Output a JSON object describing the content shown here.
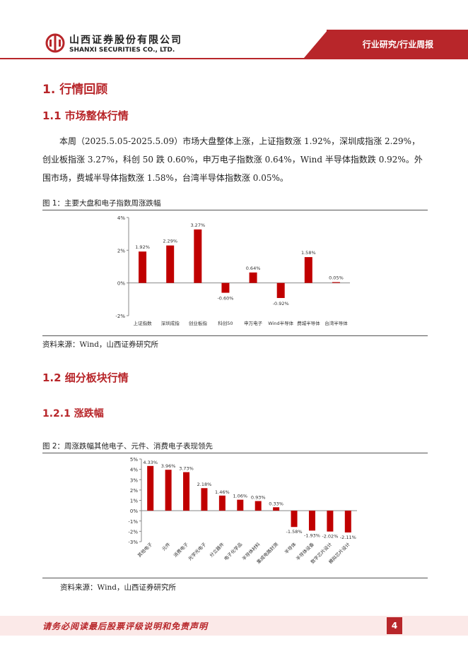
{
  "header": {
    "company_cn": "山西证券股份有限公司",
    "company_en": "SHANXI SECURITIES CO., LTD.",
    "section": "行业研究/行业周报",
    "brand_color": "#b8262a"
  },
  "section1": {
    "title": "1.  行情回顾"
  },
  "section1_1": {
    "title": "1.1  市场整体行情",
    "paragraph": "本周（2025.5.05-2025.5.09）市场大盘整体上涨，上证指数涨 1.92%，深圳成指涨 2.29%，创业板指涨 3.27%，科创 50 跌 0.60%，申万电子指数涨 0.64%，Wind 半导体指数跌 0.92%。外围市场，费城半导体指数涨 1.58%，台湾半导体指数涨 0.05%。"
  },
  "figure1": {
    "caption": "图 1：主要大盘和电子指数周涨跌幅",
    "source": "资料来源：Wind，山西证券研究所"
  },
  "section1_2": {
    "title": "1.2  细分板块行情"
  },
  "section1_2_1": {
    "title": "1.2.1  涨跌幅"
  },
  "figure2": {
    "caption": "图 2：周涨跌幅其他电子、元件、消费电子表现领先",
    "source": "资料来源：Wind，山西证券研究所"
  },
  "chart_data": [
    {
      "type": "bar",
      "categories": [
        "上证指数",
        "深圳成指",
        "创业板指",
        "科创50",
        "申万电子",
        "Wind半导体",
        "费城半导体",
        "台湾半导体"
      ],
      "values": [
        1.92,
        2.29,
        3.27,
        -0.6,
        0.64,
        -0.92,
        1.58,
        0.05
      ],
      "data_labels": [
        "1.92%",
        "2.29%",
        "3.27%",
        "-0.60%",
        "0.64%",
        "-0.92%",
        "1.58%",
        "0.05%"
      ],
      "ylim": [
        -2,
        4
      ],
      "yticks": [
        "4%",
        "2%",
        "0%",
        "-2%"
      ],
      "title": "",
      "xlabel": "",
      "ylabel": "",
      "bar_color": "#c00000",
      "grid": false
    },
    {
      "type": "bar",
      "categories": [
        "其他电子",
        "元件",
        "消费电子",
        "光学光电子",
        "分立器件",
        "电子化学品",
        "半导体材料",
        "集成电路封测",
        "半导体",
        "半导体设备",
        "数字芯片设计",
        "模拟芯片设计"
      ],
      "values": [
        4.33,
        3.96,
        3.73,
        2.18,
        1.46,
        1.06,
        0.93,
        0.33,
        -1.58,
        -1.93,
        -2.02,
        -2.11
      ],
      "data_labels": [
        "4.33%",
        "3.96%",
        "3.73%",
        "2.18%",
        "1.46%",
        "1.06%",
        "0.93%",
        "0.33%",
        "-1.58%",
        "-1.93%",
        "-2.02%",
        "-2.11%"
      ],
      "ylim": [
        -3,
        5
      ],
      "yticks": [
        "5%",
        "4%",
        "3%",
        "2%",
        "1%",
        "0%",
        "-1%",
        "-2%",
        "-3%"
      ],
      "title": "",
      "xlabel": "",
      "ylabel": "",
      "bar_color": "#c00000",
      "grid": false
    }
  ],
  "footer": {
    "disclaimer": "请务必阅读最后股票评级说明和免责声明",
    "page_number": "4"
  }
}
